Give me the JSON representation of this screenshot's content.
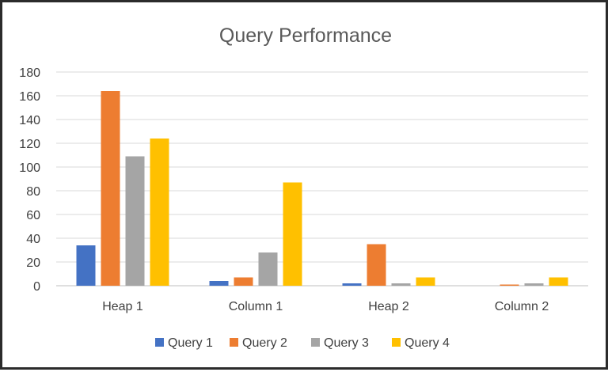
{
  "chart_data": {
    "type": "bar",
    "title": "Query Performance",
    "categories": [
      "Heap 1",
      "Column 1",
      "Heap 2",
      "Column 2"
    ],
    "series": [
      {
        "name": "Query 1",
        "color": "#4472c4",
        "values": [
          34,
          4,
          2,
          0
        ]
      },
      {
        "name": "Query 2",
        "color": "#ed7d31",
        "values": [
          164,
          7,
          35,
          1
        ]
      },
      {
        "name": "Query 3",
        "color": "#a5a5a5",
        "values": [
          109,
          28,
          2,
          2
        ]
      },
      {
        "name": "Query 4",
        "color": "#ffc000",
        "values": [
          124,
          87,
          7,
          7
        ]
      }
    ],
    "ylim": [
      0,
      180
    ],
    "yticks": [
      "0",
      "20",
      "40",
      "60",
      "80",
      "100",
      "120",
      "140",
      "160",
      "180"
    ],
    "grid": true,
    "legend_position": "bottom",
    "xlabel": "",
    "ylabel": ""
  }
}
